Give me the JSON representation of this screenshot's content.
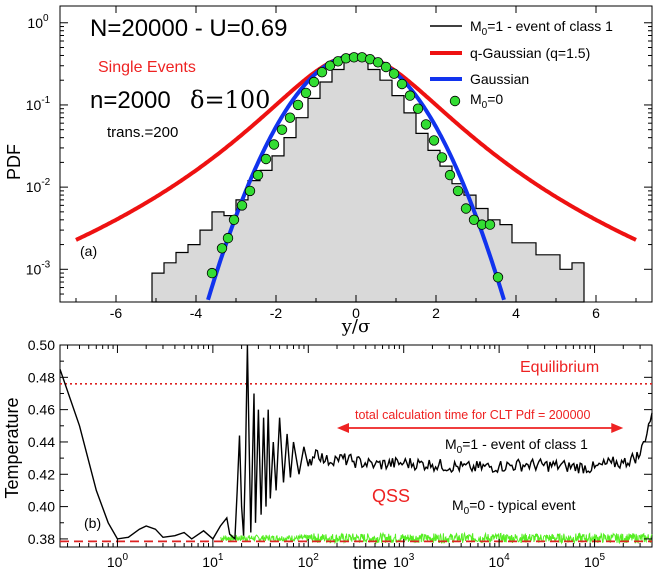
{
  "panel_a": {
    "title": "N=20000 - U=0.69",
    "single_events": "Single Events",
    "params": "n=2000",
    "delta": "δ=100",
    "trans": "trans.=200",
    "panel_label": "(a)",
    "ylabel": "PDF",
    "xlabel": "y/σ",
    "legend": [
      {
        "sub_base": "M",
        "sub": "0",
        "rest": "=1 - event of class 1"
      },
      {
        "label": "q-Gaussian (q=1.5)"
      },
      {
        "label": "Gaussian"
      },
      {
        "sub_base": "M",
        "sub": "0",
        "rest": "=0"
      }
    ]
  },
  "panel_b": {
    "ylabel": "Temperature",
    "xlabel": "time",
    "panel_label": "(b)",
    "equilibrium": "Equilibrium",
    "total_time": "total  calculation time for CLT Pdf = 200000",
    "class1_base": "M",
    "class1_sub": "0",
    "class1_rest": "=1 - event of class 1",
    "qss": "QSS",
    "typical_base": "M",
    "typical_sub": "0",
    "typical_rest": "=0  - typical event"
  },
  "colors": {
    "hist_fill": "#d9d9d9",
    "qgauss": "#ee1111",
    "gauss": "#1133ee",
    "points": "#33dd33",
    "equilibrium": "#dd2222",
    "green_line": "#55ee22"
  },
  "chart_data": [
    {
      "type": "line",
      "panel": "a",
      "title": "N=20000 - U=0.69",
      "xlabel": "y/σ",
      "ylabel": "PDF",
      "yscale": "log",
      "xlim": [
        -7.4,
        7.4
      ],
      "ylim": [
        0.0004,
        1.6
      ],
      "x_ticks": [
        -6,
        -4,
        -2,
        0,
        2,
        4,
        6
      ],
      "y_ticks": [
        {
          "value": 0.001,
          "base": "10",
          "exp": "-3"
        },
        {
          "value": 0.01,
          "base": "10",
          "exp": "-2"
        },
        {
          "value": 0.1,
          "base": "10",
          "exp": "-1"
        },
        {
          "value": 1,
          "base": "10",
          "exp": "0"
        }
      ],
      "series": [
        {
          "name": "M0=1 - event of class 1",
          "kind": "histogram",
          "bin_width": 0.3,
          "x": [
            -4.95,
            -4.65,
            -4.35,
            -4.05,
            -3.75,
            -3.45,
            -3.15,
            -2.85,
            -2.55,
            -2.25,
            -1.95,
            -1.65,
            -1.35,
            -1.05,
            -0.75,
            -0.45,
            -0.15,
            0.15,
            0.45,
            0.75,
            1.05,
            1.35,
            1.65,
            1.95,
            2.25,
            2.55,
            2.85,
            3.15,
            3.45,
            3.75,
            4.05,
            4.35,
            4.65,
            4.95,
            5.25,
            5.55
          ],
          "y": [
            0.0009,
            0.0012,
            0.0016,
            0.002,
            0.003,
            0.005,
            0.0045,
            0.007,
            0.012,
            0.016,
            0.024,
            0.04,
            0.07,
            0.12,
            0.19,
            0.27,
            0.37,
            0.38,
            0.27,
            0.2,
            0.13,
            0.08,
            0.045,
            0.028,
            0.018,
            0.011,
            0.008,
            0.0055,
            0.004,
            0.0035,
            0.0021,
            0.0021,
            0.0015,
            0.0015,
            0.001,
            0.0012
          ]
        },
        {
          "name": "q-Gaussian (q=1.5)",
          "q": 1.5,
          "amplitude": 0.4,
          "beta": 0.5
        },
        {
          "name": "Gaussian",
          "amplitude": 0.399,
          "sigma": 1.0
        },
        {
          "name": "M0=0",
          "kind": "scatter",
          "x": [
            -3.6,
            -3.35,
            -3.2,
            -3.05,
            -2.85,
            -2.65,
            -2.45,
            -2.25,
            -2.05,
            -1.85,
            -1.65,
            -1.45,
            -1.25,
            -1.05,
            -0.85,
            -0.65,
            -0.45,
            -0.25,
            -0.05,
            0.15,
            0.35,
            0.55,
            0.75,
            0.95,
            1.15,
            1.35,
            1.55,
            1.75,
            1.95,
            2.15,
            2.35,
            2.55,
            2.75,
            2.95,
            3.15,
            3.35,
            3.55
          ],
          "y": [
            0.0009,
            0.0018,
            0.0024,
            0.004,
            0.006,
            0.009,
            0.014,
            0.022,
            0.033,
            0.05,
            0.07,
            0.1,
            0.14,
            0.19,
            0.25,
            0.3,
            0.34,
            0.37,
            0.38,
            0.38,
            0.36,
            0.33,
            0.29,
            0.24,
            0.18,
            0.13,
            0.09,
            0.058,
            0.037,
            0.023,
            0.014,
            0.009,
            0.0055,
            0.004,
            0.0035,
            0.0035,
            0.0008
          ]
        }
      ]
    },
    {
      "type": "line",
      "panel": "b",
      "xlabel": "time",
      "ylabel": "Temperature",
      "xscale": "log",
      "xlim": [
        0.25,
        400000
      ],
      "ylim": [
        0.375,
        0.5
      ],
      "x_ticks": [
        {
          "value": 1,
          "base": "10",
          "exp": "0"
        },
        {
          "value": 10,
          "base": "10",
          "exp": "1"
        },
        {
          "value": 100,
          "base": "10",
          "exp": "2"
        },
        {
          "value": 1000,
          "base": "10",
          "exp": "3"
        },
        {
          "value": 10000,
          "base": "10",
          "exp": "4"
        },
        {
          "value": 100000,
          "base": "10",
          "exp": "5"
        }
      ],
      "y_ticks": [
        0.38,
        0.4,
        0.42,
        0.44,
        0.46,
        0.48,
        0.5
      ],
      "y_tick_labels": [
        "0.38",
        "0.40",
        "0.42",
        "0.44",
        "0.46",
        "0.48",
        "0.50"
      ],
      "equilibrium_T": 0.476,
      "typical_T": 0.3785,
      "arrow_range": [
        200,
        200000
      ],
      "series": [
        {
          "name": "M0=1 - event of class 1",
          "x": [
            0.25,
            0.4,
            0.6,
            0.8,
            1,
            1.3,
            1.7,
            2,
            2.5,
            3,
            4,
            5,
            6,
            8,
            10,
            12,
            14,
            15,
            17,
            18,
            19,
            20,
            21,
            22,
            23,
            24,
            25,
            26,
            27,
            28,
            30,
            32,
            34,
            36,
            38,
            40,
            43,
            46,
            50,
            55,
            60,
            65,
            70,
            80,
            90,
            100,
            120,
            150,
            200,
            300,
            500,
            1000,
            2000,
            5000,
            10000,
            20000,
            50000,
            100000,
            150000,
            200000,
            300000,
            400000
          ],
          "y": [
            0.485,
            0.45,
            0.41,
            0.39,
            0.38,
            0.381,
            0.386,
            0.388,
            0.386,
            0.381,
            0.382,
            0.384,
            0.38,
            0.385,
            0.38,
            0.388,
            0.393,
            0.383,
            0.38,
            0.41,
            0.444,
            0.4,
            0.382,
            0.43,
            0.5,
            0.44,
            0.384,
            0.43,
            0.47,
            0.39,
            0.46,
            0.395,
            0.455,
            0.4,
            0.46,
            0.405,
            0.44,
            0.41,
            0.455,
            0.415,
            0.445,
            0.418,
            0.44,
            0.42,
            0.437,
            0.425,
            0.435,
            0.428,
            0.43,
            0.428,
            0.426,
            0.427,
            0.426,
            0.424,
            0.425,
            0.426,
            0.425,
            0.424,
            0.427,
            0.427,
            0.432,
            0.458
          ]
        },
        {
          "name": "M0=0  - typical event",
          "x": [
            0.25,
            1,
            10,
            100,
            1000,
            10000,
            100000,
            400000
          ],
          "y": [
            0.3785,
            0.3785,
            0.379,
            0.381,
            0.381,
            0.381,
            0.381,
            0.381
          ]
        }
      ]
    }
  ]
}
